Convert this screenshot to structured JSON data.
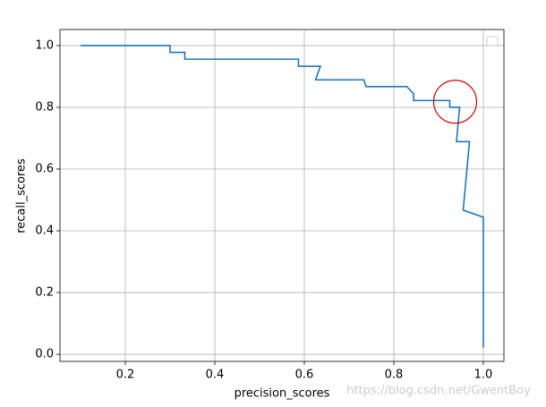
{
  "chart_data": {
    "type": "line",
    "xlabel": "precision_scores",
    "ylabel": "recall_scores",
    "x": [
      0.1,
      0.3,
      0.3,
      0.333,
      0.333,
      0.587,
      0.587,
      0.636,
      0.625,
      0.733,
      0.738,
      0.829,
      0.844,
      0.844,
      0.925,
      0.925,
      0.947,
      0.94,
      0.969,
      0.955,
      1.0,
      1.0
    ],
    "series": [
      {
        "color": "#1f77b4",
        "values": [
          1.0,
          1.0,
          0.978,
          0.978,
          0.956,
          0.956,
          0.933,
          0.933,
          0.889,
          0.889,
          0.867,
          0.867,
          0.844,
          0.822,
          0.822,
          0.8,
          0.8,
          0.689,
          0.689,
          0.467,
          0.444,
          0.022
        ]
      }
    ],
    "xlim": [
      0.054,
      1.046
    ],
    "ylim": [
      -0.023,
      1.052
    ],
    "xticks": [
      0.2,
      0.4,
      0.6,
      0.8,
      {
        "value": 1,
        "label": "1.0"
      }
    ],
    "yticks": [
      {
        "value": 0,
        "label": "0.0"
      },
      0.2,
      0.4,
      0.6,
      0.8,
      {
        "value": 1,
        "label": "1.0"
      }
    ],
    "grid": true,
    "annotation_circle": {
      "x": 0.937,
      "y": 0.818,
      "color": "#cc0000"
    },
    "watermark": "https://blog.csdn.net/GwentBoy"
  }
}
